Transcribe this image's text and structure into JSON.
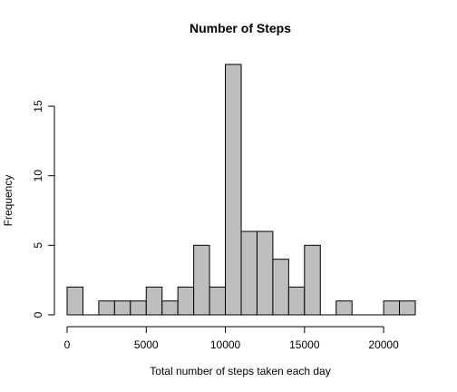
{
  "chart_data": {
    "type": "bar",
    "title": "Number of Steps",
    "xlabel": "Total number of steps taken each day",
    "ylabel": "Frequency",
    "bin_width": 1000,
    "bin_starts": [
      0,
      1000,
      2000,
      3000,
      4000,
      5000,
      6000,
      7000,
      8000,
      9000,
      10000,
      11000,
      12000,
      13000,
      14000,
      15000,
      16000,
      17000,
      18000,
      19000,
      20000,
      21000
    ],
    "values": [
      2,
      0,
      1,
      1,
      1,
      2,
      1,
      2,
      5,
      2,
      18,
      6,
      6,
      4,
      2,
      5,
      0,
      1,
      0,
      0,
      1,
      1
    ],
    "xlim": [
      0,
      22000
    ],
    "ylim": [
      0,
      18
    ],
    "x_ticks": [
      0,
      5000,
      10000,
      15000,
      20000
    ],
    "x_tick_labels": [
      "0",
      "5000",
      "10000",
      "15000",
      "20000"
    ],
    "y_ticks": [
      0,
      5,
      10,
      15
    ],
    "y_tick_labels": [
      "0",
      "5",
      "10",
      "15"
    ],
    "grid": false,
    "bar_color": "#bebebe",
    "edge_color": "#000000"
  }
}
